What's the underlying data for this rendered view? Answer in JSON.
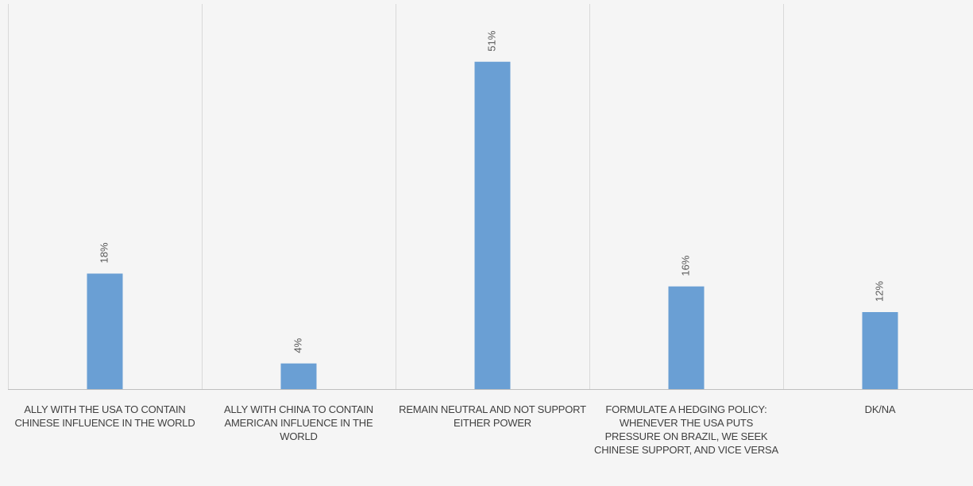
{
  "chart_data": {
    "type": "bar",
    "categories": [
      "ALLY WITH THE USA TO CONTAIN CHINESE INFLUENCE IN THE WORLD",
      "ALLY WITH CHINA TO CONTAIN AMERICAN INFLUENCE IN THE WORLD",
      "REMAIN NEUTRAL AND NOT SUPPORT EITHER POWER",
      "FORMULATE A HEDGING POLICY: WHENEVER THE USA PUTS PRESSURE ON BRAZIL, WE SEEK CHINESE SUPPORT, AND VICE VERSA",
      "DK/NA"
    ],
    "values": [
      18,
      4,
      51,
      16,
      12
    ],
    "data_labels": [
      "18%",
      "4%",
      "51%",
      "16%",
      "12%"
    ],
    "ylim": [
      0,
      60
    ],
    "grid": "vertical category separators",
    "bar_color": "#6a9fd4"
  }
}
